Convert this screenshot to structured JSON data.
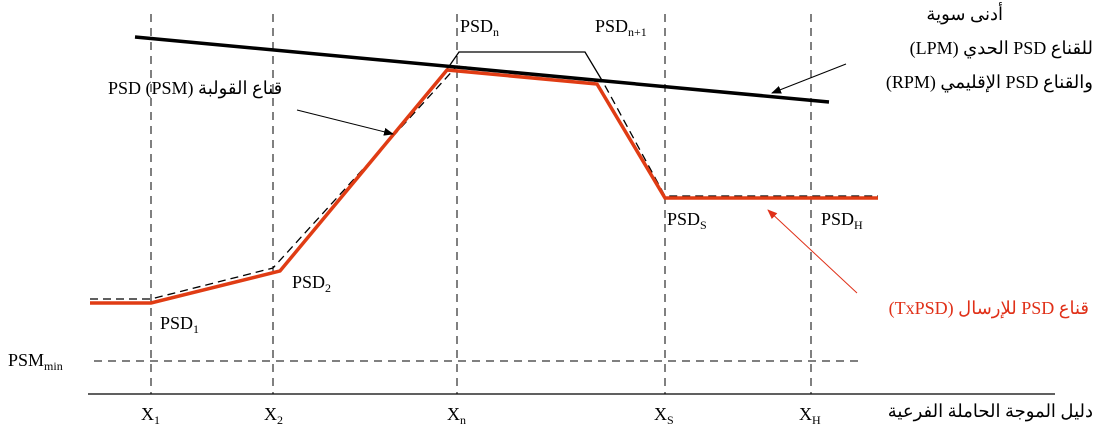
{
  "colors": {
    "txpsd": "#e03c14",
    "txpsd_label": "#e03018",
    "line": "#000000"
  },
  "labels": {
    "psd_n": {
      "base": "PSD",
      "sub": "n"
    },
    "psd_n1": {
      "base": "PSD",
      "sub": "n+1"
    },
    "psd_s": {
      "base": "PSD",
      "sub": "S"
    },
    "psd_h": {
      "base": "PSD",
      "sub": "H"
    },
    "psd_1": {
      "base": "PSD",
      "sub": "1"
    },
    "psd_2": {
      "base": "PSD",
      "sub": "2"
    },
    "psm_min": {
      "base": "PSM",
      "sub": "min"
    },
    "limit_mask": [
      "أدنى سوية",
      "للقناع PSD الحدي (LPM)",
      "والقناع PSD الإقليمي (RPM)"
    ],
    "psm_mask": "قناع القولبة PSD (PSM)",
    "tx_mask": "قناع PSD للإرسال (TxPSD)",
    "x_axis": "دليل الموجة الحاملة الفرعية",
    "x_ticks": [
      {
        "base": "X",
        "sub": "1"
      },
      {
        "base": "X",
        "sub": "2"
      },
      {
        "base": "X",
        "sub": "n"
      },
      {
        "base": "X",
        "sub": "S"
      },
      {
        "base": "X",
        "sub": "H"
      }
    ]
  }
}
